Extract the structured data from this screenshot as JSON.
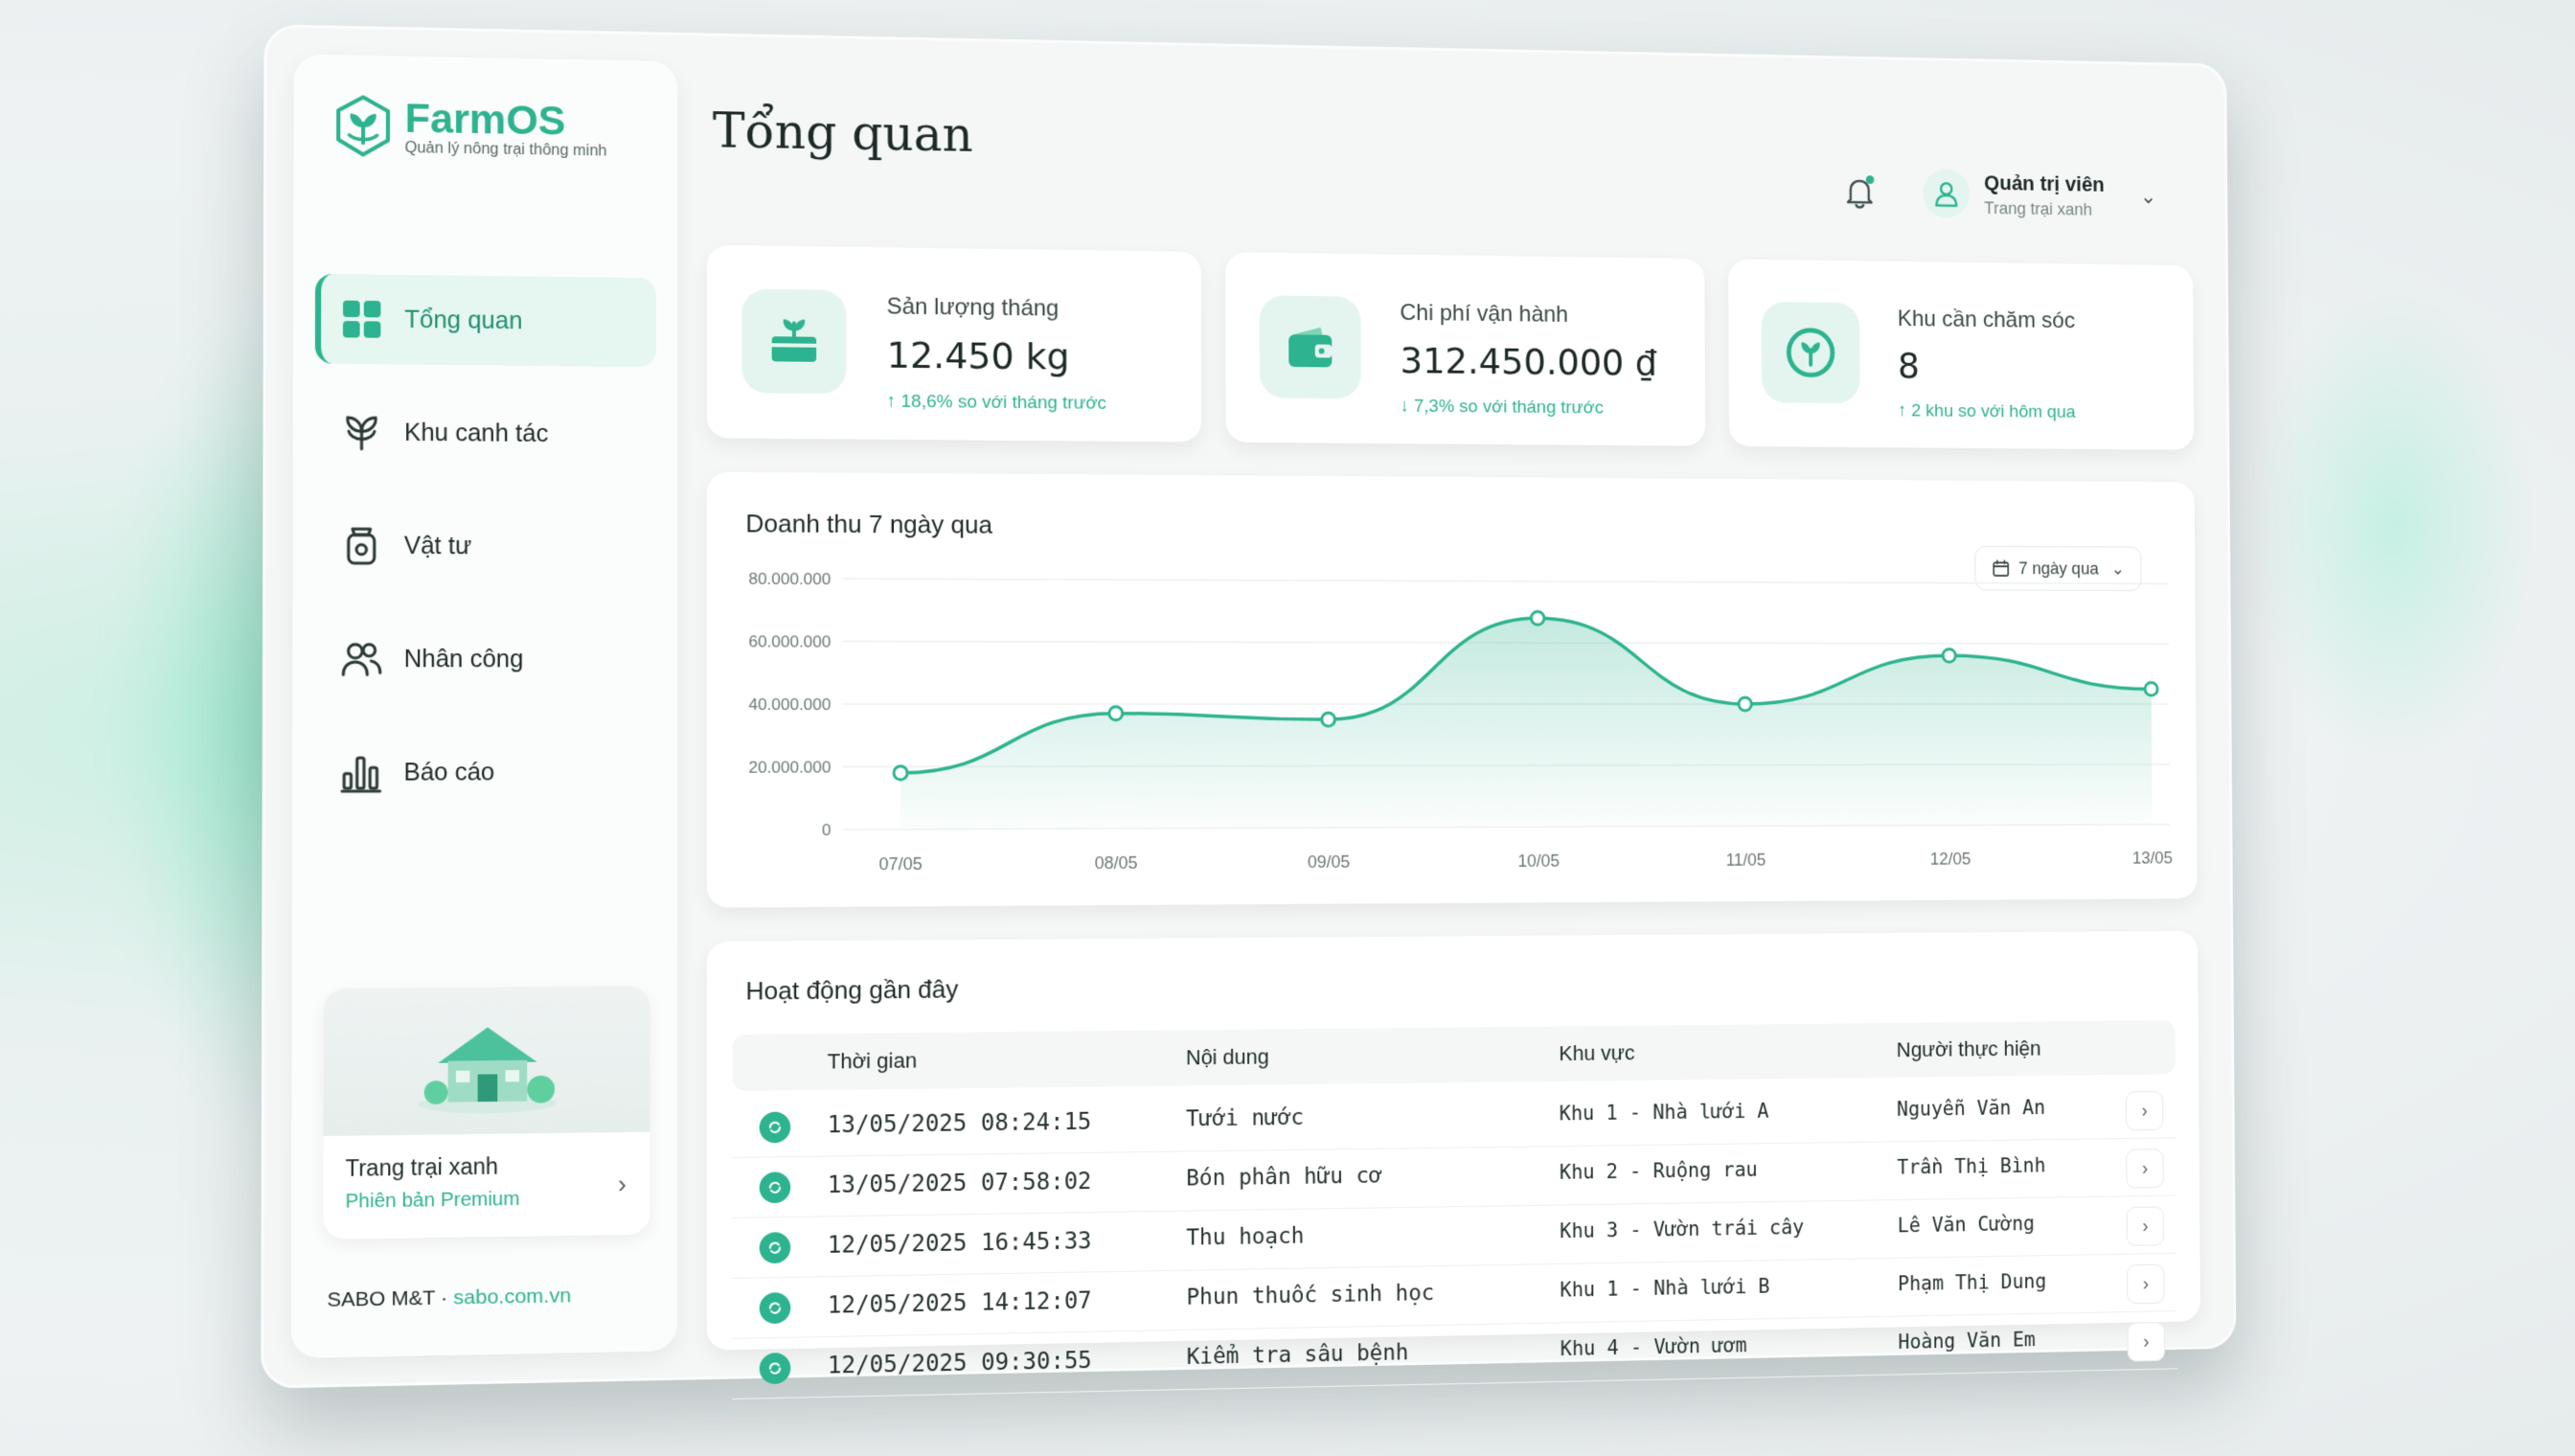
{
  "brand": {
    "name": "FarmOS",
    "tagline": "Quản lý nông trại thông minh",
    "accent": "#2db38f"
  },
  "sidebar": {
    "items": [
      {
        "label": "Tổng quan",
        "icon": "grid-icon",
        "active": true
      },
      {
        "label": "Khu canh tác",
        "icon": "plant-icon",
        "active": false
      },
      {
        "label": "Vật tư",
        "icon": "sack-icon",
        "active": false
      },
      {
        "label": "Nhân công",
        "icon": "people-icon",
        "active": false
      },
      {
        "label": "Báo cáo",
        "icon": "bar-chart-icon",
        "active": false
      }
    ],
    "farm": {
      "name": "Trang trại xanh",
      "plan": "Phiên bản Premium"
    },
    "footer": {
      "company": "SABO M&T",
      "separator": " · ",
      "link": "sabo.com.vn"
    }
  },
  "header": {
    "title": "Tổng quan",
    "user": {
      "name": "Quản trị viên",
      "farm": "Trang trại xanh"
    }
  },
  "stats": [
    {
      "label": "Sản lượng tháng",
      "value": "12.450 kg",
      "delta": "↑ 18,6% so với tháng trước",
      "icon": "harvest-box-icon"
    },
    {
      "label": "Chi phí vận hành",
      "value": "312.450.000 ₫",
      "delta": "↓ 7,3% so với tháng trước",
      "icon": "wallet-icon"
    },
    {
      "label": "Khu cần chăm sóc",
      "value": "8",
      "delta": "↑ 2 khu so với hôm qua",
      "icon": "leaf-target-icon"
    }
  ],
  "revenue": {
    "title": "Doanh thu 7 ngày qua",
    "range_label": "7 ngày qua"
  },
  "chart_data": {
    "type": "area",
    "title": "Doanh thu 7 ngày qua",
    "categories": [
      "07/05",
      "08/05",
      "09/05",
      "10/05",
      "11/05",
      "12/05",
      "13/05"
    ],
    "values": [
      18000000,
      37000000,
      35000000,
      68000000,
      40000000,
      56000000,
      45000000
    ],
    "yticks": [
      "80.000.000",
      "60.000.000",
      "40.000.000",
      "20.000.000",
      "0"
    ],
    "ylim": [
      0,
      80000000
    ],
    "grid": true,
    "color": "#2db38f"
  },
  "activity": {
    "title": "Hoạt động gần đây",
    "columns": [
      "Thời gian",
      "Nội dung",
      "Khu vực",
      "Người thực hiện"
    ],
    "rows": [
      {
        "time": "13/05/2025 08:24:15",
        "content": "Tưới nước",
        "area": "Khu 1 - Nhà lưới A",
        "person": "Nguyễn Văn An"
      },
      {
        "time": "13/05/2025 07:58:02",
        "content": "Bón phân hữu cơ",
        "area": "Khu 2 - Ruộng rau",
        "person": "Trần Thị Bình"
      },
      {
        "time": "12/05/2025 16:45:33",
        "content": "Thu hoạch",
        "area": "Khu 3 - Vườn trái cây",
        "person": "Lê Văn Cường"
      },
      {
        "time": "12/05/2025 14:12:07",
        "content": "Phun thuốc sinh học",
        "area": "Khu 1 - Nhà lưới B",
        "person": "Phạm Thị Dung"
      },
      {
        "time": "12/05/2025 09:30:55",
        "content": "Kiểm tra sâu bệnh",
        "area": "Khu 4 - Vườn ươm",
        "person": "Hoàng Văn Em"
      }
    ]
  }
}
